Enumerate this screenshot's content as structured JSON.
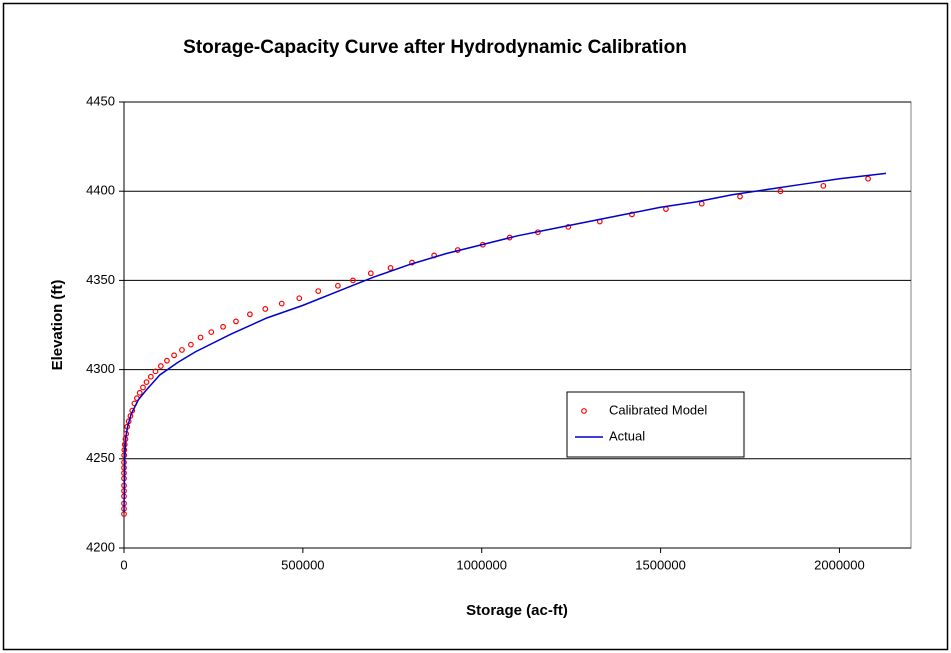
{
  "chart_data": {
    "type": "scatter-line",
    "title": "Storage-Capacity Curve after Hydrodynamic Calibration",
    "x_label": "Storage (ac-ft)",
    "y_label": "Elevation (ft)",
    "xlim": [
      0,
      2200000
    ],
    "xticks": [
      0,
      500000,
      1000000,
      1500000,
      2000000
    ],
    "ylim": [
      4200,
      4450
    ],
    "yticks": [
      4200,
      4250,
      4300,
      4350,
      4400,
      4450
    ],
    "grid": true,
    "legend": "right",
    "series": [
      {
        "name": "Calibrated Model",
        "color": "#ff0000",
        "style": "marker",
        "x": [
          0,
          0,
          0,
          0,
          0,
          0,
          0,
          0,
          0,
          0,
          500,
          1000,
          2000,
          4000,
          6000,
          9000,
          13000,
          18000,
          23000,
          29000,
          36000,
          44000,
          53000,
          63000,
          75000,
          88000,
          103000,
          120000,
          140000,
          162000,
          187000,
          214000,
          244000,
          277000,
          313000,
          352000,
          395000,
          441000,
          490000,
          543000,
          598000,
          640000,
          690000,
          745000,
          805000,
          867000,
          933000,
          1003000,
          1078000,
          1157000,
          1242000,
          1330000,
          1420000,
          1515000,
          1615000,
          1722000,
          1835000,
          1955000,
          2080000
        ],
        "values": [
          4219,
          4222,
          4225,
          4229,
          4232,
          4235,
          4239,
          4242,
          4245,
          4248,
          4252,
          4255,
          4258,
          4261,
          4264,
          4268,
          4271,
          4274,
          4277,
          4281,
          4284,
          4287,
          4290,
          4293,
          4296,
          4299,
          4302,
          4305,
          4308,
          4311,
          4314,
          4318,
          4321,
          4324,
          4327,
          4331,
          4334,
          4337,
          4340,
          4344,
          4347,
          4350,
          4354,
          4357,
          4360,
          4364,
          4367,
          4370,
          4374,
          4377,
          4380,
          4383,
          4387,
          4390,
          4393,
          4397,
          4400,
          4403,
          4407
        ]
      },
      {
        "name": "Actual",
        "color": "#0000cc",
        "style": "line",
        "x": [
          0,
          2000,
          5000,
          10000,
          20000,
          40000,
          60000,
          100000,
          150000,
          200000,
          300000,
          400000,
          500000,
          600000,
          700000,
          800000,
          900000,
          1000000,
          1100000,
          1200000,
          1300000,
          1400000,
          1500000,
          1600000,
          1700000,
          1800000,
          1900000,
          2000000,
          2130000
        ],
        "values": [
          4220,
          4250,
          4262,
          4268,
          4275,
          4283,
          4288,
          4297,
          4304,
          4310,
          4320,
          4329,
          4336,
          4344,
          4352,
          4359,
          4365,
          4370,
          4375,
          4379,
          4383,
          4387,
          4391,
          4394,
          4398,
          4401,
          4404,
          4407,
          4410
        ]
      }
    ]
  }
}
